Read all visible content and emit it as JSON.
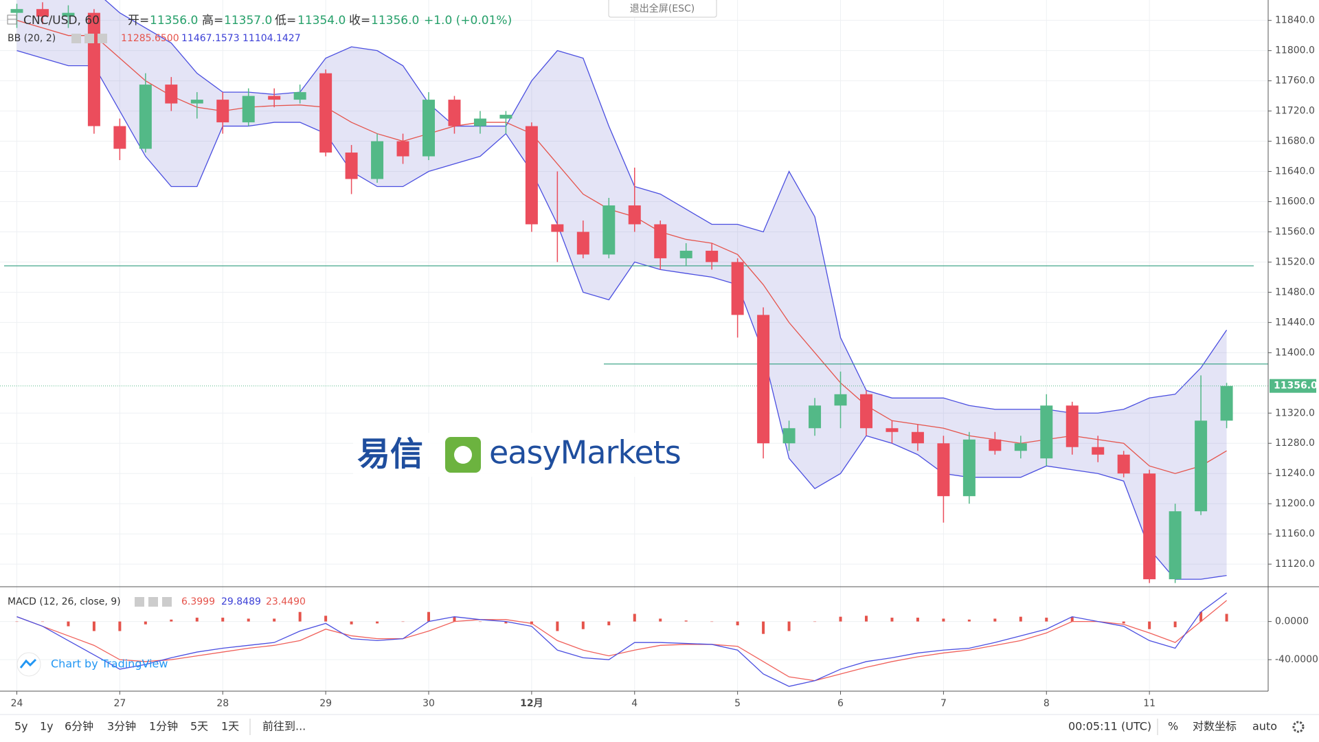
{
  "header": {
    "symbol": "CNC/USD, 60",
    "open_label": "开=",
    "open": "11356.0",
    "high_label": "高=",
    "high": "11357.0",
    "low_label": "低=",
    "low": "11354.0",
    "close_label": "收=",
    "close": "11356.0",
    "change": "+1.0 (+0.01%)",
    "exit_fullscreen": "退出全屏(ESC)"
  },
  "logo": {
    "cn": "易信",
    "en": "easyMarkets"
  },
  "attribution": "Chart by TradingView",
  "chart_data": [
    {
      "type": "candlestick",
      "up_color": "#53b987",
      "down_color": "#eb4d5c",
      "indicator": {
        "name": "BB (20, 2)",
        "values": [
          "11285.6500",
          "11467.1573",
          "11104.1427"
        ],
        "basis_color": "#e5534b",
        "band_color": "#4a4ee0"
      },
      "categories": [
        "24",
        null,
        null,
        null,
        "27",
        null,
        null,
        null,
        "28",
        null,
        null,
        null,
        "29",
        null,
        null,
        null,
        "30",
        null,
        null,
        null,
        "12月",
        null,
        null,
        null,
        "4",
        null,
        null,
        null,
        "5",
        null,
        null,
        null,
        "6",
        null,
        null,
        null,
        "7",
        null,
        null,
        null,
        "8",
        null,
        null,
        null,
        "11",
        null,
        null,
        null
      ],
      "open": [
        11850,
        11855,
        11845,
        11850,
        11700,
        11670,
        11755,
        11730,
        11735,
        11705,
        11740,
        11735,
        11770,
        11665,
        11630,
        11680,
        11660,
        11735,
        11700,
        11710,
        11700,
        11570,
        11560,
        11530,
        11595,
        11570,
        11525,
        11535,
        11520,
        11450,
        11280,
        11300,
        11330,
        11345,
        11300,
        11295,
        11280,
        11210,
        11285,
        11270,
        11260,
        11330,
        11275,
        11265,
        11240,
        11100,
        11190,
        11310
      ],
      "high": [
        11862,
        11864,
        11860,
        11855,
        11710,
        11770,
        11765,
        11745,
        11745,
        11750,
        11750,
        11755,
        11775,
        11675,
        11690,
        11690,
        11745,
        11740,
        11720,
        11720,
        11705,
        11640,
        11575,
        11605,
        11645,
        11575,
        11545,
        11545,
        11525,
        11460,
        11310,
        11340,
        11375,
        11350,
        11310,
        11305,
        11290,
        11295,
        11295,
        11290,
        11345,
        11335,
        11290,
        11270,
        11245,
        11200,
        11370,
        11360
      ],
      "low": [
        11830,
        11835,
        11830,
        11690,
        11655,
        11665,
        11720,
        11710,
        11690,
        11700,
        11725,
        11730,
        11660,
        11610,
        11625,
        11650,
        11655,
        11690,
        11690,
        11690,
        11560,
        11520,
        11525,
        11525,
        11560,
        11510,
        11515,
        11510,
        11420,
        11260,
        11270,
        11290,
        11300,
        11290,
        11280,
        11270,
        11175,
        11200,
        11265,
        11260,
        11250,
        11265,
        11255,
        11235,
        11095,
        11095,
        11185,
        11300
      ],
      "close": [
        11855,
        11845,
        11850,
        11700,
        11670,
        11755,
        11730,
        11735,
        11705,
        11740,
        11735,
        11745,
        11665,
        11630,
        11680,
        11660,
        11735,
        11700,
        11710,
        11715,
        11570,
        11560,
        11530,
        11595,
        11570,
        11525,
        11535,
        11520,
        11450,
        11280,
        11300,
        11330,
        11345,
        11300,
        11295,
        11280,
        11210,
        11285,
        11270,
        11280,
        11330,
        11275,
        11265,
        11240,
        11100,
        11190,
        11310,
        11356
      ],
      "bb_upper": [
        11880,
        11870,
        11870,
        11880,
        11850,
        11830,
        11810,
        11770,
        11745,
        11745,
        11742,
        11745,
        11790,
        11805,
        11800,
        11780,
        11730,
        11700,
        11700,
        11700,
        11760,
        11800,
        11790,
        11700,
        11620,
        11610,
        11590,
        11570,
        11570,
        11560,
        11640,
        11580,
        11420,
        11350,
        11340,
        11340,
        11340,
        11330,
        11325,
        11325,
        11325,
        11320,
        11320,
        11325,
        11340,
        11345,
        11380,
        11430
      ],
      "bb_basis": [
        11840,
        11830,
        11820,
        11820,
        11790,
        11760,
        11740,
        11725,
        11720,
        11725,
        11727,
        11728,
        11725,
        11705,
        11690,
        11680,
        11690,
        11700,
        11705,
        11705,
        11690,
        11650,
        11610,
        11590,
        11580,
        11560,
        11550,
        11545,
        11530,
        11490,
        11440,
        11400,
        11360,
        11330,
        11310,
        11305,
        11300,
        11290,
        11285,
        11280,
        11285,
        11290,
        11285,
        11280,
        11250,
        11240,
        11250,
        11270
      ],
      "bb_lower": [
        11800,
        11790,
        11780,
        11780,
        11720,
        11660,
        11620,
        11620,
        11700,
        11700,
        11705,
        11705,
        11690,
        11640,
        11620,
        11620,
        11640,
        11650,
        11660,
        11690,
        11640,
        11570,
        11480,
        11470,
        11520,
        11510,
        11505,
        11500,
        11490,
        11400,
        11260,
        11220,
        11240,
        11290,
        11280,
        11265,
        11240,
        11235,
        11235,
        11235,
        11250,
        11245,
        11240,
        11230,
        11140,
        11100,
        11100,
        11105
      ],
      "hlines": [
        11515,
        11385
      ],
      "hline_color": "#2e9e7e",
      "last_price": 11356,
      "last_price_label": "11356.0",
      "ylim": [
        11091,
        11867
      ],
      "yticks": [
        {
          "value": 11120,
          "label": "11120.0"
        },
        {
          "value": 11160,
          "label": "11160.0"
        },
        {
          "value": 11200,
          "label": "11200.0"
        },
        {
          "value": 11240,
          "label": "11240.0"
        },
        {
          "value": 11280,
          "label": "11280.0"
        },
        {
          "value": 11320,
          "label": "11320.0"
        },
        {
          "value": 11400,
          "label": "11400.0"
        },
        {
          "value": 11440,
          "label": "11440.0"
        },
        {
          "value": 11480,
          "label": "11480.0"
        },
        {
          "value": 11520,
          "label": "11520.0"
        },
        {
          "value": 11560,
          "label": "11560.0"
        },
        {
          "value": 11600,
          "label": "11600.0"
        },
        {
          "value": 11640,
          "label": "11640.0"
        },
        {
          "value": 11680,
          "label": "11680.0"
        },
        {
          "value": 11720,
          "label": "11720.0"
        },
        {
          "value": 11760,
          "label": "11760.0"
        },
        {
          "value": 11800,
          "label": "11800.0"
        },
        {
          "value": 11840,
          "label": "11840.0"
        }
      ],
      "grid": true
    },
    {
      "type": "macd",
      "indicator": {
        "name": "MACD (12, 26, close, 9)",
        "values": [
          "6.3999",
          "29.8489",
          "23.4490"
        ]
      },
      "macd_color": "#4a4ee0",
      "signal_color": "#f0605a",
      "histogram_color": "#e5534b",
      "macd": [
        5,
        -5,
        -20,
        -35,
        -50,
        -45,
        -38,
        -32,
        -28,
        -25,
        -22,
        -10,
        -2,
        -18,
        -20,
        -18,
        0,
        5,
        2,
        0,
        -5,
        -30,
        -38,
        -40,
        -22,
        -22,
        -23,
        -24,
        -30,
        -55,
        -68,
        -62,
        -50,
        -42,
        -38,
        -33,
        -30,
        -28,
        -22,
        -15,
        -8,
        5,
        0,
        -5,
        -20,
        -28,
        10,
        30
      ],
      "signal": [
        5,
        -5,
        -15,
        -25,
        -40,
        -42,
        -40,
        -36,
        -32,
        -28,
        -25,
        -20,
        -8,
        -15,
        -18,
        -18,
        -10,
        0,
        2,
        2,
        -2,
        -20,
        -30,
        -36,
        -30,
        -25,
        -24,
        -24,
        -26,
        -42,
        -58,
        -62,
        -55,
        -48,
        -42,
        -37,
        -33,
        -30,
        -25,
        -20,
        -12,
        0,
        0,
        -3,
        -12,
        -22,
        0,
        22
      ],
      "histogram": [
        0,
        0,
        -5,
        -10,
        -10,
        -3,
        2,
        4,
        4,
        3,
        3,
        10,
        6,
        -3,
        -2,
        0,
        10,
        5,
        0,
        -2,
        -3,
        -10,
        -8,
        -4,
        8,
        3,
        1,
        0,
        -4,
        -13,
        -10,
        0,
        5,
        6,
        4,
        4,
        3,
        2,
        3,
        5,
        4,
        5,
        0,
        -2,
        -8,
        -6,
        10,
        8
      ],
      "ylim": [
        -73,
        35
      ],
      "yticks": [
        {
          "value": 0,
          "label": "0.0000"
        },
        {
          "value": -40,
          "label": "-40.0000"
        }
      ],
      "grid": true
    }
  ],
  "toolbar": {
    "left": [
      "5y",
      "1y",
      "6分钟",
      "3分钟",
      "1分钟",
      "5天",
      "1天",
      "前往到..."
    ],
    "time": "00:05:11 (UTC)",
    "percent": "%",
    "log": "对数坐标",
    "auto": "auto"
  }
}
